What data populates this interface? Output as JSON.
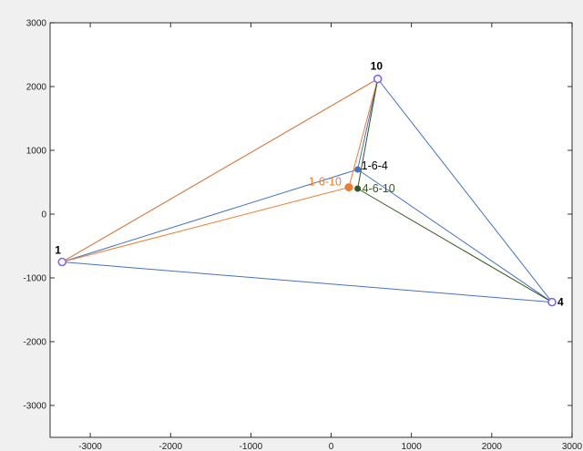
{
  "chart_data": {
    "type": "line",
    "title": "",
    "xlabel": "",
    "ylabel": "",
    "xlim": [
      -3500,
      3000
    ],
    "ylim": [
      -3500,
      3000
    ],
    "xticks": [
      -3000,
      -2000,
      -1000,
      0,
      1000,
      2000,
      3000
    ],
    "yticks": [
      -3000,
      -2000,
      -1000,
      0,
      1000,
      2000,
      3000
    ],
    "grid": false,
    "colors": {
      "blue": "#4472c4",
      "orange": "#ed7d31",
      "green": "#375623",
      "node": "#7b68ee",
      "label_default": "#000000"
    },
    "nodes": [
      {
        "label": "1",
        "x": -3350,
        "y": -750
      },
      {
        "label": "10",
        "x": 580,
        "y": 2120
      },
      {
        "label": "4",
        "x": 2750,
        "y": -1380
      }
    ],
    "points": [
      {
        "label": "1-6-4",
        "x": 330,
        "y": 700,
        "color": "#4472c4"
      },
      {
        "label": "1-6-10",
        "x": 220,
        "y": 420,
        "color": "#ed7d31"
      },
      {
        "label": "4-6-10",
        "x": 330,
        "y": 400,
        "color": "#375623"
      }
    ],
    "series": [
      {
        "color": "#4472c4",
        "segments": [
          [
            [
              -3350,
              -750
            ],
            [
              580,
              2120
            ]
          ],
          [
            [
              -3350,
              -750
            ],
            [
              2750,
              -1380
            ]
          ],
          [
            [
              580,
              2120
            ],
            [
              2750,
              -1380
            ]
          ],
          [
            [
              -3350,
              -750
            ],
            [
              330,
              700
            ]
          ],
          [
            [
              330,
              700
            ],
            [
              580,
              2120
            ]
          ],
          [
            [
              330,
              700
            ],
            [
              2750,
              -1380
            ]
          ]
        ]
      },
      {
        "color": "#ed7d31",
        "segments": [
          [
            [
              -3350,
              -750
            ],
            [
              580,
              2120
            ]
          ],
          [
            [
              -3350,
              -750
            ],
            [
              220,
              420
            ]
          ],
          [
            [
              220,
              420
            ],
            [
              580,
              2120
            ]
          ]
        ]
      },
      {
        "color": "#375623",
        "segments": [
          [
            [
              330,
              400
            ],
            [
              580,
              2120
            ]
          ],
          [
            [
              330,
              400
            ],
            [
              2750,
              -1380
            ]
          ]
        ]
      }
    ]
  }
}
